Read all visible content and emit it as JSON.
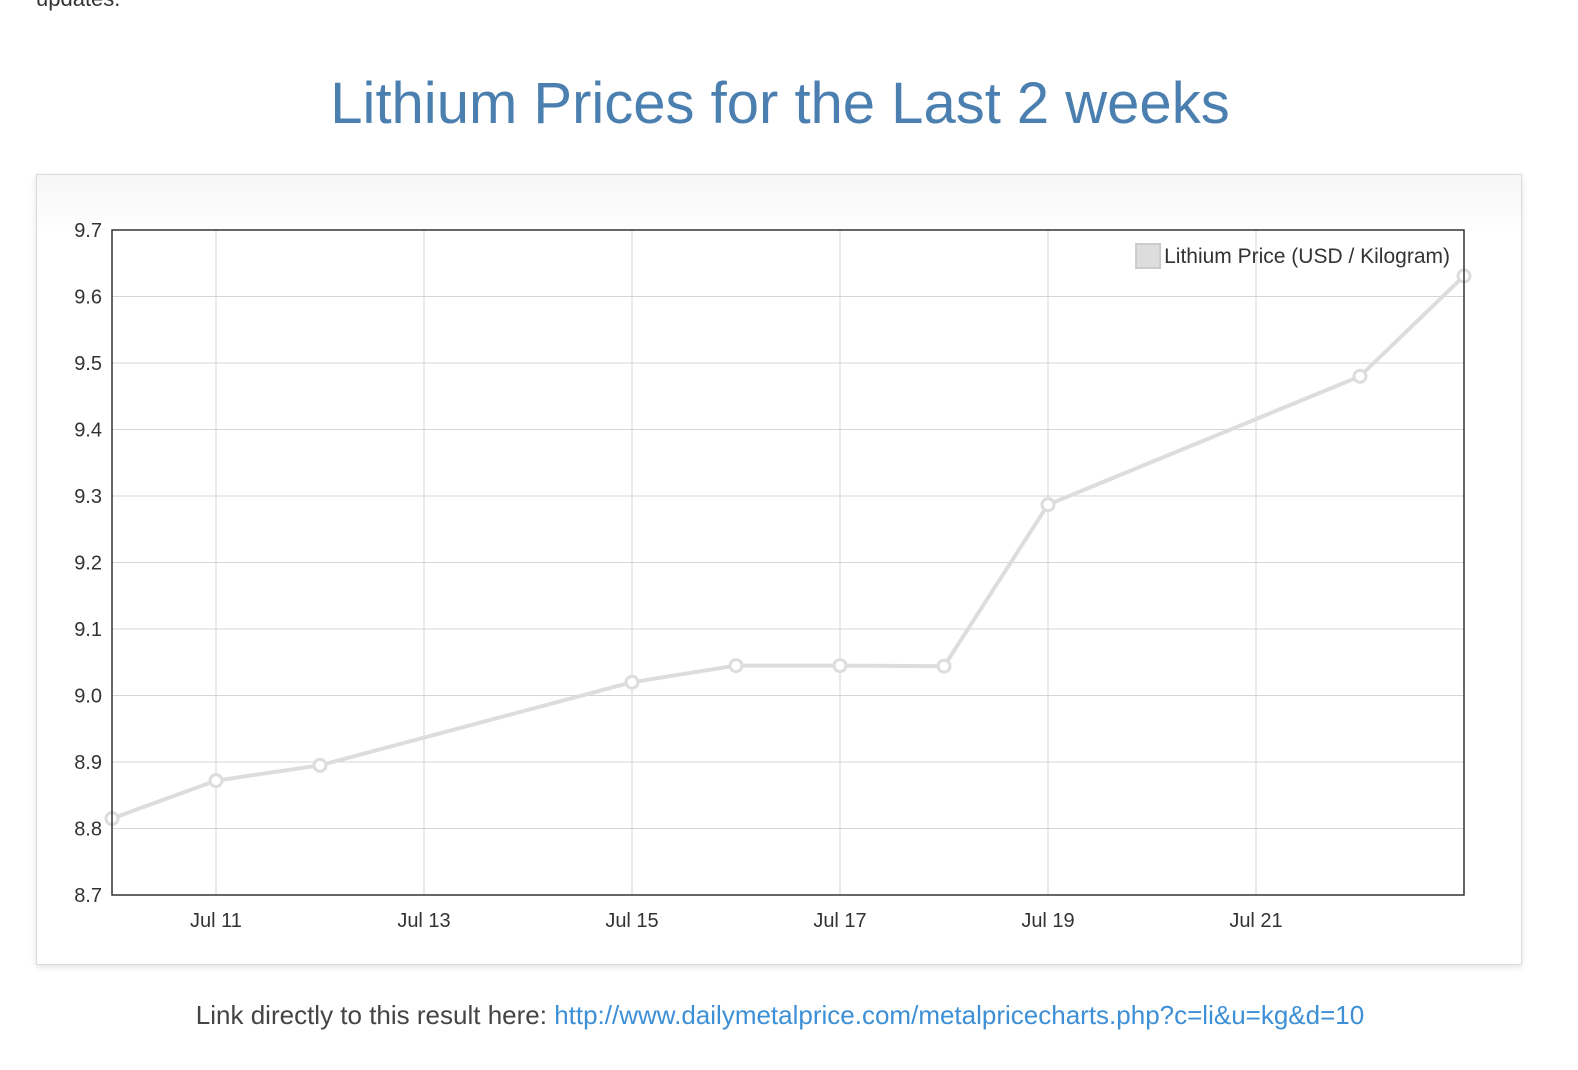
{
  "page": {
    "top_fragment": "updates.",
    "title": "Lithium Prices for the Last 2 weeks",
    "link_prefix": "Link directly to this result here:",
    "link_text": "http://www.dailymetalprice.com/metalpricecharts.php?c=li&u=kg&d=10"
  },
  "colors": {
    "title": "#4a7fb0",
    "link": "#3d8fd6",
    "series_line": "#dddddd",
    "grid": "#d6d6d6",
    "plot_border": "#333333"
  },
  "chart_data": {
    "type": "line",
    "title": "",
    "xlabel": "",
    "ylabel": "",
    "ylim": [
      8.7,
      9.7
    ],
    "y_ticks": [
      "8.7",
      "8.8",
      "8.9",
      "9.0",
      "9.1",
      "9.2",
      "9.3",
      "9.4",
      "9.5",
      "9.6",
      "9.7"
    ],
    "xlim": [
      "2016-07-10",
      "2016-07-23"
    ],
    "x_ticks": [
      {
        "date": "2016-07-11",
        "label": "Jul 11"
      },
      {
        "date": "2016-07-13",
        "label": "Jul 13"
      },
      {
        "date": "2016-07-15",
        "label": "Jul 15"
      },
      {
        "date": "2016-07-17",
        "label": "Jul 17"
      },
      {
        "date": "2016-07-19",
        "label": "Jul 19"
      },
      {
        "date": "2016-07-21",
        "label": "Jul 21"
      }
    ],
    "grid": true,
    "legend": "top-right",
    "series": [
      {
        "name": "Lithium Price (USD / Kilogram)",
        "points": [
          {
            "x": "2016-07-10",
            "y": 8.815
          },
          {
            "x": "2016-07-11",
            "y": 8.872
          },
          {
            "x": "2016-07-12",
            "y": 8.895
          },
          {
            "x": "2016-07-15",
            "y": 9.02
          },
          {
            "x": "2016-07-16",
            "y": 9.045
          },
          {
            "x": "2016-07-17",
            "y": 9.045
          },
          {
            "x": "2016-07-18",
            "y": 9.044
          },
          {
            "x": "2016-07-19",
            "y": 9.287
          },
          {
            "x": "2016-07-22",
            "y": 9.48
          },
          {
            "x": "2016-07-23",
            "y": 9.631
          }
        ]
      }
    ]
  }
}
